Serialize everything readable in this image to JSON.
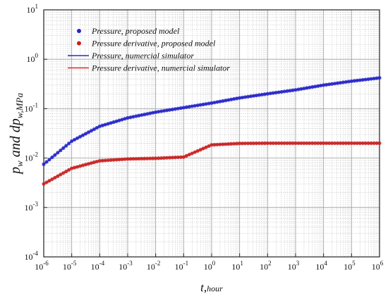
{
  "chart_data": {
    "type": "scatter",
    "title": "",
    "xlabel": "t,hour",
    "ylabel": "pw and dpw,MPa",
    "xscale": "log",
    "yscale": "log",
    "xlim": [
      1e-06,
      1000000.0
    ],
    "ylim": [
      0.0001,
      10
    ],
    "grid": true,
    "legend_position": "top-left",
    "x_tick_labels": [
      {
        "base": "10",
        "exp": "-6"
      },
      {
        "base": "10",
        "exp": "-5"
      },
      {
        "base": "10",
        "exp": "-4"
      },
      {
        "base": "10",
        "exp": "-3"
      },
      {
        "base": "10",
        "exp": "-2"
      },
      {
        "base": "10",
        "exp": "-1"
      },
      {
        "base": "10",
        "exp": "0"
      },
      {
        "base": "10",
        "exp": "1"
      },
      {
        "base": "10",
        "exp": "2"
      },
      {
        "base": "10",
        "exp": "3"
      },
      {
        "base": "10",
        "exp": "4"
      },
      {
        "base": "10",
        "exp": "5"
      },
      {
        "base": "10",
        "exp": "6"
      }
    ],
    "y_tick_labels": [
      {
        "base": "10",
        "exp": "-4"
      },
      {
        "base": "10",
        "exp": "-3"
      },
      {
        "base": "10",
        "exp": "-2"
      },
      {
        "base": "10",
        "exp": "-1"
      },
      {
        "base": "10",
        "exp": "0"
      },
      {
        "base": "10",
        "exp": "1"
      }
    ],
    "series": [
      {
        "name": "Pressure, proposed model",
        "kind": "markers",
        "color": "#2323c8",
        "x": [
          1e-06,
          1e-05,
          0.0001,
          0.001,
          0.01,
          0.1,
          1,
          10,
          100,
          1000,
          10000,
          100000,
          1000000
        ],
        "y": [
          0.0075,
          0.022,
          0.044,
          0.065,
          0.085,
          0.105,
          0.13,
          0.165,
          0.2,
          0.24,
          0.3,
          0.36,
          0.42
        ]
      },
      {
        "name": "Pressure derivative, proposed model",
        "kind": "markers",
        "color": "#c81e1e",
        "x": [
          1e-06,
          1e-05,
          0.0001,
          0.001,
          0.01,
          0.1,
          1,
          10,
          100,
          1000,
          10000,
          100000,
          1000000
        ],
        "y": [
          0.003,
          0.0062,
          0.0088,
          0.0096,
          0.0099,
          0.0105,
          0.0185,
          0.0198,
          0.02,
          0.02,
          0.02,
          0.02,
          0.02
        ]
      },
      {
        "name": "Pressure, numercial simulator",
        "kind": "line",
        "color": "#2a2ad2",
        "x": [
          1e-06,
          1e-05,
          0.0001,
          0.001,
          0.01,
          0.1,
          1,
          10,
          100,
          1000,
          10000,
          100000,
          1000000
        ],
        "y": [
          0.0075,
          0.022,
          0.044,
          0.065,
          0.085,
          0.105,
          0.13,
          0.165,
          0.2,
          0.24,
          0.3,
          0.36,
          0.42
        ]
      },
      {
        "name": "Pressure derivative, numercial simulator",
        "kind": "line",
        "color": "#d23232",
        "x": [
          1e-06,
          1e-05,
          0.0001,
          0.001,
          0.01,
          0.1,
          1,
          10,
          100,
          1000,
          10000,
          100000,
          1000000
        ],
        "y": [
          0.003,
          0.0062,
          0.0088,
          0.0096,
          0.0099,
          0.0105,
          0.0185,
          0.0198,
          0.02,
          0.02,
          0.02,
          0.02,
          0.02
        ]
      }
    ]
  }
}
